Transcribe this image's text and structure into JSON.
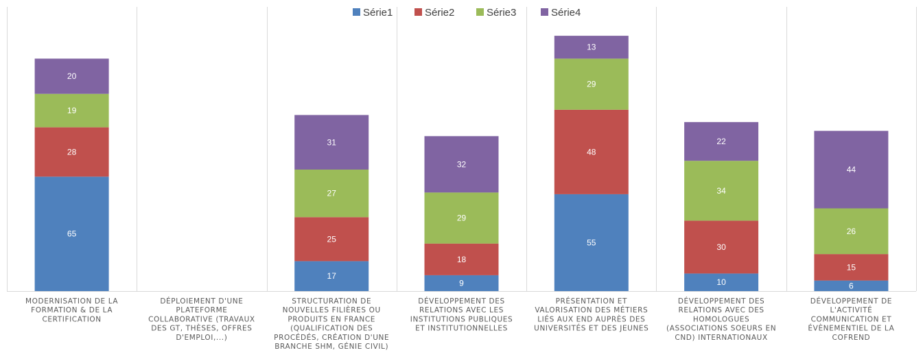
{
  "chart_data": {
    "type": "bar",
    "stacked": true,
    "title": "",
    "xlabel": "",
    "ylabel": "",
    "ylim": [
      0,
      150
    ],
    "grid": "vertical separators between categories",
    "legend_position": "top-center",
    "categories": [
      [
        "MODERNISATION DE LA",
        "FORMATION & DE LA",
        "CERTIFICATION"
      ],
      [
        "DÉPLOIEMENT D'UNE",
        "PLATEFORME",
        "COLLABORATIVE (TRAVAUX",
        "DES GT, THÈSES, OFFRES",
        "D'EMPLOI,...)"
      ],
      [
        "STRUCTURATION DE",
        "NOUVELLES FILIÈRES OU",
        "PRODUITS EN FRANCE",
        "(QUALIFICATION DES",
        "PROCÉDÉS, CRÉATION D'UNE",
        "BRANCHE SHM, GÉNIE CIVIL)"
      ],
      [
        "DÉVELOPPEMENT DES",
        "RELATIONS AVEC LES",
        "INSTITUTIONS PUBLIQUES",
        "ET INSTITUTIONNELLES"
      ],
      [
        "PRÉSENTATION ET",
        "VALORISATION DES MÉTIERS",
        "LIÉS AUX END AUPRÈS DES",
        "UNIVERSITÉS ET DES JEUNES"
      ],
      [
        "DÉVELOPPEMENT DES",
        "RELATIONS AVEC DES",
        "HOMOLOGUES",
        "(ASSOCIATIONS SOEURS EN",
        "CND) INTERNATIONAUX"
      ],
      [
        "DÉVELOPPEMENT DE",
        "L'ACTIVITÉ",
        "COMMUNICATION ET",
        "ÉVÈNEMENTIEL DE LA",
        "COFREND"
      ]
    ],
    "series": [
      {
        "name": "Série1",
        "color": "#4f81bd",
        "values": [
          65,
          0,
          17,
          9,
          55,
          10,
          6
        ]
      },
      {
        "name": "Série2",
        "color": "#c0504d",
        "values": [
          28,
          0,
          25,
          18,
          48,
          30,
          15
        ]
      },
      {
        "name": "Série3",
        "color": "#9bbb59",
        "values": [
          19,
          0,
          27,
          29,
          29,
          34,
          26
        ]
      },
      {
        "name": "Série4",
        "color": "#8064a2",
        "values": [
          20,
          0,
          31,
          32,
          13,
          22,
          44
        ]
      }
    ]
  }
}
